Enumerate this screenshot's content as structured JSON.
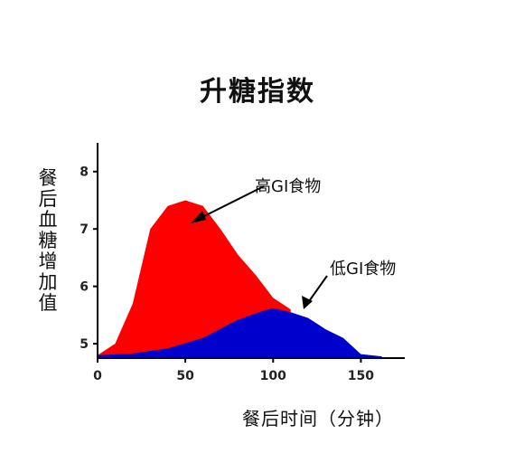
{
  "chart_data": {
    "type": "area",
    "title": "升糖指数",
    "xlabel": "餐后时间（分钟）",
    "ylabel": "餐后血糖增加值",
    "xlim": [
      0,
      175
    ],
    "ylim": [
      4.75,
      8.5
    ],
    "xticks": [
      0,
      50,
      100,
      150
    ],
    "yticks": [
      5,
      6,
      7,
      8
    ],
    "grid": false,
    "series": [
      {
        "name": "高GI食物",
        "color": "#ff0000",
        "points": [
          [
            0,
            4.8
          ],
          [
            10,
            5.0
          ],
          [
            20,
            5.7
          ],
          [
            30,
            7.0
          ],
          [
            40,
            7.4
          ],
          [
            50,
            7.5
          ],
          [
            60,
            7.4
          ],
          [
            70,
            7.0
          ],
          [
            80,
            6.55
          ],
          [
            90,
            6.2
          ],
          [
            100,
            5.8
          ],
          [
            110,
            5.6
          ]
        ]
      },
      {
        "name": "低GI食物",
        "color": "#0000cc",
        "points": [
          [
            0,
            4.8
          ],
          [
            20,
            4.83
          ],
          [
            40,
            4.92
          ],
          [
            60,
            5.1
          ],
          [
            80,
            5.42
          ],
          [
            95,
            5.58
          ],
          [
            100,
            5.62
          ],
          [
            110,
            5.55
          ],
          [
            120,
            5.45
          ],
          [
            130,
            5.25
          ],
          [
            140,
            5.1
          ],
          [
            150,
            4.82
          ],
          [
            162,
            4.78
          ]
        ]
      }
    ],
    "annotations": [
      {
        "text": "高GI食物",
        "target": "高GI食物"
      },
      {
        "text": "低GI食物",
        "target": "低GI食物"
      }
    ]
  }
}
